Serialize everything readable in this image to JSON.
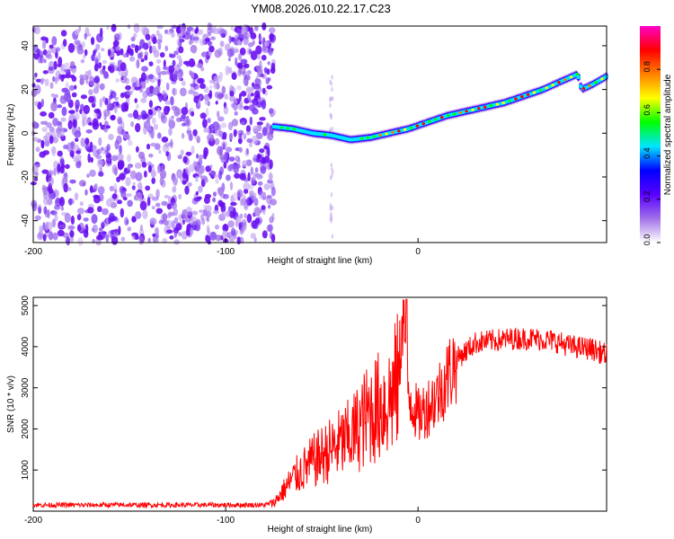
{
  "chart_data": [
    {
      "type": "heatmap",
      "title": "YM08.2026.010.22.17.C23",
      "xlabel": "Height of straight line (km)",
      "ylabel": "Frequency (Hz)",
      "xlim": [
        -200,
        98
      ],
      "ylim": [
        -50,
        49
      ],
      "xticks": [
        -200,
        -100,
        0
      ],
      "yticks": [
        -40,
        -20,
        0,
        20,
        40
      ],
      "grid": false,
      "noise_region_x": [
        -200,
        -75
      ],
      "trace": {
        "name": "",
        "x": [
          -75,
          -65,
          -55,
          -45,
          -35,
          -25,
          -15,
          -5,
          5,
          15,
          25,
          35,
          45,
          55,
          65,
          75,
          83,
          85,
          90,
          98
        ],
        "y": [
          3,
          2,
          0,
          -1,
          -3,
          -2,
          0,
          2,
          5,
          8,
          10,
          12,
          14,
          17,
          20,
          24,
          27,
          20,
          22,
          26
        ]
      },
      "colorbar": {
        "label": "Normalized spectral amplitude",
        "range": [
          0.0,
          1.0
        ],
        "ticks": [
          0.0,
          0.2,
          0.4,
          0.6,
          0.8
        ],
        "colors": [
          "#ffffff",
          "#a070e8",
          "#5a00ff",
          "#0000ff",
          "#00e5ff",
          "#00ff00",
          "#ffff00",
          "#ff8000",
          "#ff0000",
          "#ff00c8"
        ]
      }
    },
    {
      "type": "line",
      "title": "",
      "xlabel": "Height of straight line (km)",
      "ylabel": "SNR (10 * v/v)",
      "xlim": [
        -200,
        98
      ],
      "ylim": [
        0,
        5200
      ],
      "xticks": [
        -200,
        -100,
        0
      ],
      "yticks": [
        1000,
        2000,
        3000,
        4000,
        5000
      ],
      "grid": false,
      "series": [
        {
          "name": "",
          "color": "#ff0000",
          "x": [
            -200,
            -180,
            -160,
            -140,
            -120,
            -100,
            -80,
            -75,
            -65,
            -55,
            -45,
            -35,
            -25,
            -15,
            -10,
            -8,
            -5,
            0,
            10,
            20,
            30,
            40,
            50,
            60,
            70,
            80,
            90,
            98
          ],
          "y": [
            150,
            150,
            150,
            150,
            150,
            150,
            150,
            200,
            800,
            1200,
            1500,
            1800,
            2400,
            2700,
            3200,
            5200,
            2900,
            2300,
            2800,
            3700,
            4100,
            4150,
            4200,
            4200,
            4150,
            4000,
            3950,
            3800
          ]
        }
      ]
    }
  ]
}
